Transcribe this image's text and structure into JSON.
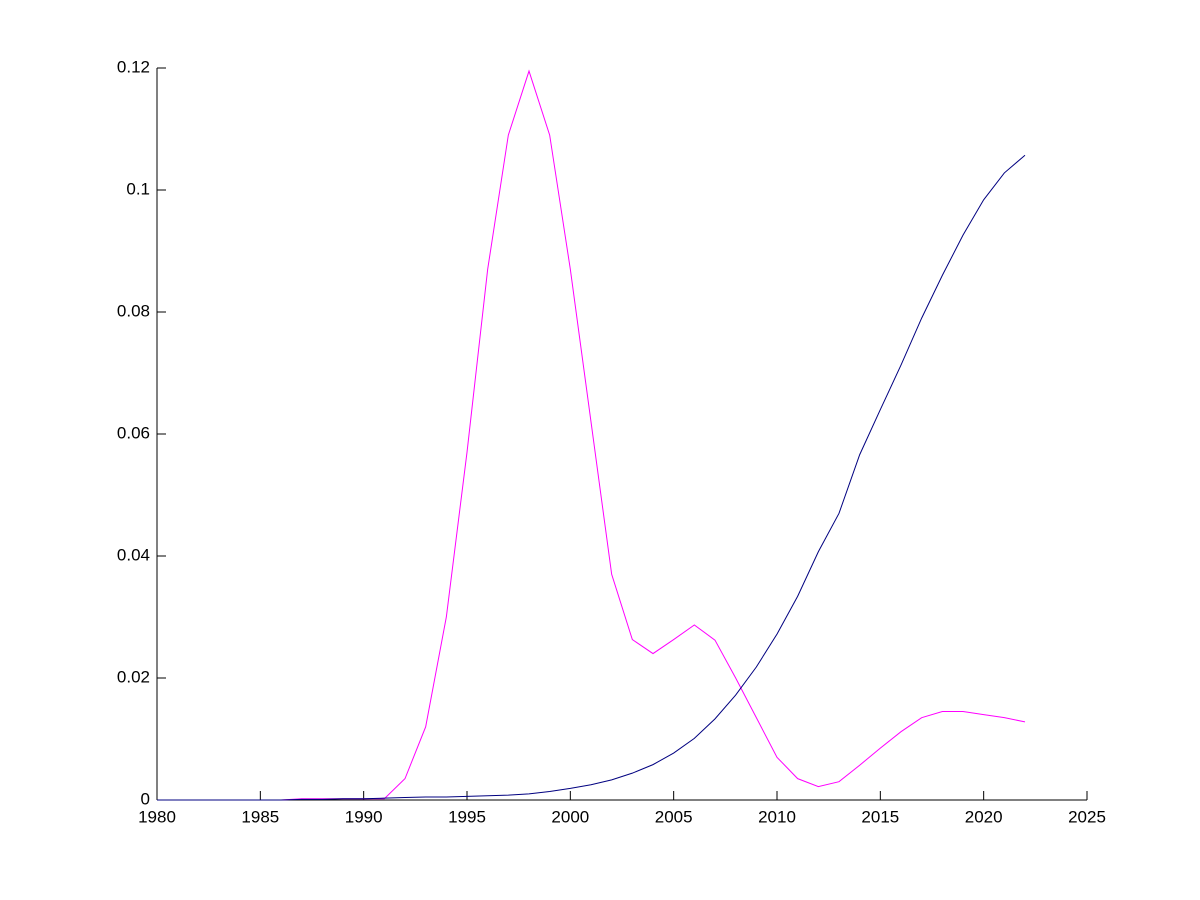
{
  "chart_data": {
    "type": "line",
    "x": [
      1980,
      1981,
      1982,
      1983,
      1984,
      1985,
      1986,
      1987,
      1988,
      1989,
      1990,
      1991,
      1992,
      1993,
      1994,
      1995,
      1996,
      1997,
      1998,
      1999,
      2000,
      2001,
      2002,
      2003,
      2004,
      2005,
      2006,
      2007,
      2008,
      2009,
      2010,
      2011,
      2012,
      2013,
      2014,
      2015,
      2016,
      2017,
      2018,
      2019,
      2020,
      2021,
      2022
    ],
    "series": [
      {
        "color": "#ff00ff",
        "values": [
          0,
          0,
          0,
          0,
          0,
          0,
          0,
          0.0002,
          0.0002,
          0.0002,
          0.0002,
          0.0002,
          0.0035,
          0.012,
          0.03,
          0.057,
          0.087,
          0.109,
          0.1195,
          0.109,
          0.087,
          0.062,
          0.037,
          0.0263,
          0.024,
          0.0263,
          0.0287,
          0.0262,
          0.02,
          0.0135,
          0.007,
          0.0035,
          0.0022,
          0.003,
          0.0057,
          0.0085,
          0.0112,
          0.0135,
          0.0145,
          0.0145,
          0.014,
          0.0135,
          0.0128
        ]
      },
      {
        "color": "#000080",
        "values": [
          0,
          0,
          0,
          0,
          0,
          0,
          0,
          0.0001,
          0.0001,
          0.0002,
          0.0002,
          0.0003,
          0.0004,
          0.0005,
          0.0005,
          0.0006,
          0.0007,
          0.0008,
          0.001,
          0.0014,
          0.0019,
          0.0025,
          0.0033,
          0.0044,
          0.0058,
          0.0077,
          0.0101,
          0.0133,
          0.0172,
          0.0218,
          0.0272,
          0.0334,
          0.0407,
          0.047,
          0.0566,
          0.064,
          0.0713,
          0.079,
          0.086,
          0.0926,
          0.0984,
          0.1028,
          0.1057
        ]
      }
    ],
    "xlim": [
      1980,
      2025
    ],
    "xticks": [
      1980,
      1985,
      1990,
      1995,
      2000,
      2005,
      2010,
      2015,
      2020,
      2025
    ],
    "ylim": [
      0,
      0.12
    ],
    "yticks": [
      0,
      0.02,
      0.04,
      0.06,
      0.08,
      0.1,
      0.12
    ]
  }
}
